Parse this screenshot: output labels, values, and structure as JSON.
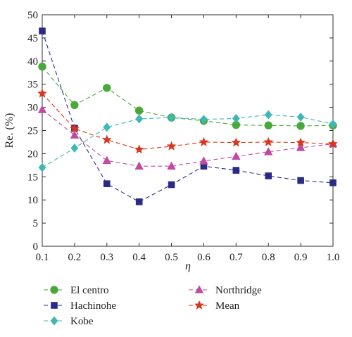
{
  "chart_data": {
    "type": "line",
    "title": "",
    "xlabel": "η",
    "ylabel": "Re. (%)",
    "x": [
      0.1,
      0.2,
      0.3,
      0.4,
      0.5,
      0.6,
      0.7,
      0.8,
      0.9,
      1.0
    ],
    "x_tick_labels": [
      "0.1",
      "0.2",
      "0.3",
      "0.4",
      "0.5",
      "0.6",
      "0.7",
      "0.8",
      "0.9",
      "1.0"
    ],
    "y_tick_labels": [
      "0",
      "5",
      "10",
      "15",
      "20",
      "25",
      "30",
      "35",
      "40",
      "45",
      "50"
    ],
    "xlim": [
      0.1,
      1.0
    ],
    "ylim": [
      0,
      50
    ],
    "grid": false,
    "legend_position": "bottom",
    "series": [
      {
        "name": "El centro",
        "color": "#4aa83a",
        "marker": "circle",
        "values": [
          38.8,
          30.5,
          34.2,
          29.3,
          27.8,
          27.1,
          26.2,
          26.1,
          26.0,
          26.1
        ]
      },
      {
        "name": "Hachinohe",
        "color": "#2b2a86",
        "marker": "square",
        "values": [
          46.5,
          25.5,
          13.5,
          9.6,
          13.3,
          17.3,
          16.4,
          15.2,
          14.2,
          13.7
        ]
      },
      {
        "name": "Kobe",
        "color": "#3fb8b4",
        "marker": "diamond",
        "values": [
          17.0,
          21.2,
          25.7,
          27.5,
          27.8,
          27.4,
          27.6,
          28.4,
          27.9,
          26.4
        ]
      },
      {
        "name": "Northridge",
        "color": "#c04aa0",
        "marker": "triangle",
        "values": [
          29.5,
          24.0,
          18.5,
          17.3,
          17.3,
          18.4,
          19.4,
          20.4,
          21.3,
          22.1
        ]
      },
      {
        "name": "Mean",
        "color": "#d9361d",
        "marker": "star",
        "values": [
          33.0,
          25.4,
          23.0,
          20.9,
          21.6,
          22.5,
          22.4,
          22.5,
          22.4,
          22.1
        ]
      }
    ]
  }
}
